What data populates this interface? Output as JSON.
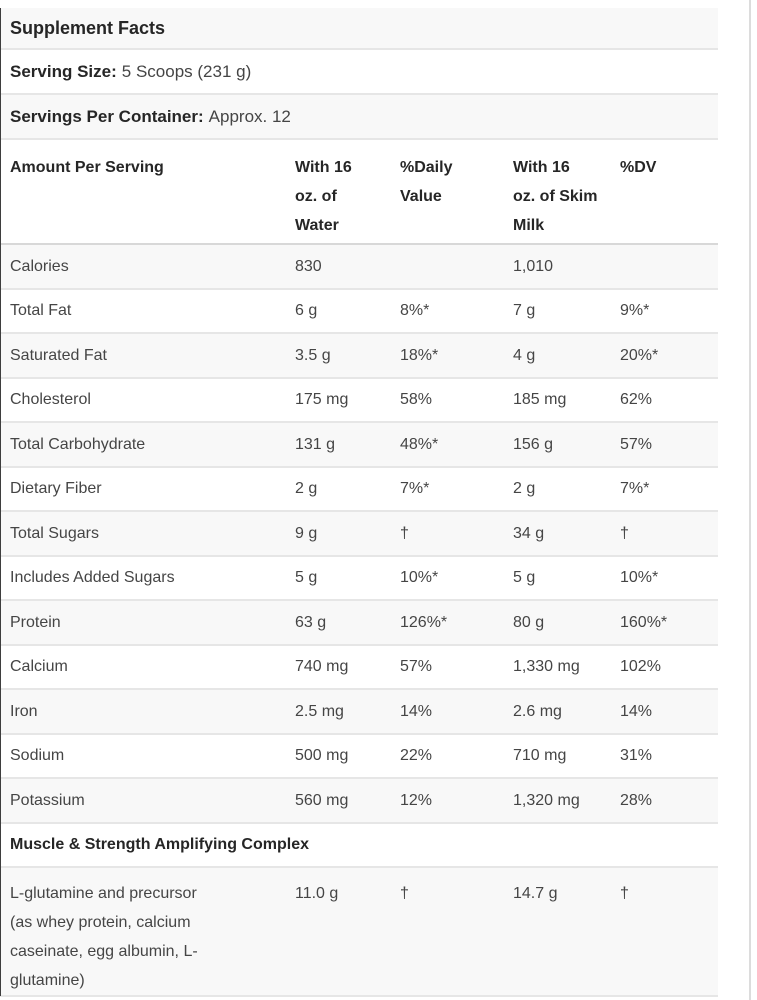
{
  "panel": {
    "title": "Supplement Facts",
    "serving_size": {
      "label": "Serving Size:",
      "value": "5 Scoops (231 g)"
    },
    "servings_per_container": {
      "label": "Servings Per Container:",
      "value": "Approx. 12"
    }
  },
  "table": {
    "header": {
      "cells": [
        [
          "Amount Per Serving"
        ],
        [
          "With 16",
          "oz. of",
          "Water"
        ],
        [
          "%Daily",
          "Value"
        ],
        [
          "With 16",
          "oz. of Skim",
          "Milk"
        ],
        [
          "%DV"
        ]
      ]
    },
    "rows": [
      {
        "cells": [
          [
            "Calories"
          ],
          [
            "830"
          ],
          [
            ""
          ],
          [
            "1,010"
          ],
          [
            ""
          ]
        ]
      },
      {
        "cells": [
          [
            "Total Fat"
          ],
          [
            "6 g"
          ],
          [
            "8%*"
          ],
          [
            "7 g"
          ],
          [
            "9%*"
          ]
        ]
      },
      {
        "cells": [
          [
            "Saturated Fat"
          ],
          [
            "3.5 g"
          ],
          [
            "18%*"
          ],
          [
            "4 g"
          ],
          [
            "20%*"
          ]
        ]
      },
      {
        "cells": [
          [
            "Cholesterol"
          ],
          [
            "175 mg"
          ],
          [
            "58%"
          ],
          [
            "185 mg"
          ],
          [
            "62%"
          ]
        ]
      },
      {
        "cells": [
          [
            "Total Carbohydrate"
          ],
          [
            "131 g"
          ],
          [
            "48%*"
          ],
          [
            "156 g"
          ],
          [
            "57%"
          ]
        ]
      },
      {
        "cells": [
          [
            "Dietary Fiber"
          ],
          [
            "2 g"
          ],
          [
            "7%*"
          ],
          [
            "2 g"
          ],
          [
            "7%*"
          ]
        ]
      },
      {
        "cells": [
          [
            "Total Sugars"
          ],
          [
            "9 g"
          ],
          [
            "†"
          ],
          [
            "34 g"
          ],
          [
            "†"
          ]
        ]
      },
      {
        "cells": [
          [
            "Includes Added Sugars"
          ],
          [
            "5 g"
          ],
          [
            "10%*"
          ],
          [
            "5 g"
          ],
          [
            "10%*"
          ]
        ]
      },
      {
        "cells": [
          [
            "Protein"
          ],
          [
            "63 g"
          ],
          [
            "126%*"
          ],
          [
            "80 g"
          ],
          [
            "160%*"
          ]
        ]
      },
      {
        "cells": [
          [
            "Calcium"
          ],
          [
            "740 mg"
          ],
          [
            "57%"
          ],
          [
            "1,330 mg"
          ],
          [
            "102%"
          ]
        ]
      },
      {
        "cells": [
          [
            "Iron"
          ],
          [
            "2.5 mg"
          ],
          [
            "14%"
          ],
          [
            "2.6 mg"
          ],
          [
            "14%"
          ]
        ]
      },
      {
        "cells": [
          [
            "Sodium"
          ],
          [
            "500 mg"
          ],
          [
            "22%"
          ],
          [
            "710 mg"
          ],
          [
            "31%"
          ]
        ]
      },
      {
        "cells": [
          [
            "Potassium"
          ],
          [
            "560 mg"
          ],
          [
            "12%"
          ],
          [
            "1,320 mg"
          ],
          [
            "28%"
          ]
        ]
      }
    ],
    "section_header": "Muscle & Strength Amplifying Complex",
    "complex_rows": [
      {
        "cells": [
          [
            "L-glutamine and precursor",
            "(as whey protein, calcium",
            "caseinate, egg albumin, L-",
            "glutamine)"
          ],
          [
            "11.0 g"
          ],
          [
            "†"
          ],
          [
            "14.7 g"
          ],
          [
            "†"
          ]
        ]
      }
    ]
  },
  "colors": {
    "row_alt_bg": "#f8f8f8",
    "separator": "#e6e6e6",
    "header_separator": "#d8d8d8",
    "text": "#454545",
    "bold_text": "#262626",
    "left_border": "#3e3e3e",
    "right_line": "#dcdcdc"
  }
}
